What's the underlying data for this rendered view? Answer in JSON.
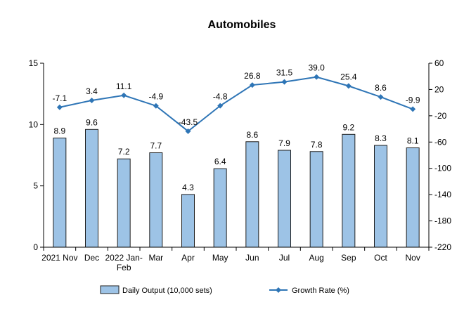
{
  "chart_data": {
    "type": "bar+line",
    "title": "Automobiles",
    "categories": [
      "2021 Nov",
      "Dec",
      "2022 Jan-Feb",
      "Mar",
      "Apr",
      "May",
      "Jun",
      "Jul",
      "Aug",
      "Sep",
      "Oct",
      "Nov"
    ],
    "category_lines": [
      [
        "2021 Nov"
      ],
      [
        "Dec"
      ],
      [
        "2022 Jan-",
        "Feb"
      ],
      [
        "Mar"
      ],
      [
        "Apr"
      ],
      [
        "May"
      ],
      [
        "Jun"
      ],
      [
        "Jul"
      ],
      [
        "Aug"
      ],
      [
        "Sep"
      ],
      [
        "Oct"
      ],
      [
        "Nov"
      ]
    ],
    "series": [
      {
        "name": "Daily Output (10,000 sets)",
        "type": "bar",
        "axis": "left",
        "values": [
          8.9,
          9.6,
          7.2,
          7.7,
          4.3,
          6.4,
          8.6,
          7.9,
          7.8,
          9.2,
          8.3,
          8.1
        ],
        "labels": [
          "8.9",
          "9.6",
          "7.2",
          "7.7",
          "4.3",
          "6.4",
          "8.6",
          "7.9",
          "7.8",
          "9.2",
          "8.3",
          "8.1"
        ]
      },
      {
        "name": "Growth Rate (%)",
        "type": "line",
        "axis": "right",
        "values": [
          -7.1,
          3.4,
          11.1,
          -4.9,
          -43.5,
          -4.8,
          26.8,
          31.5,
          39.0,
          25.4,
          8.6,
          -9.9
        ],
        "labels": [
          "-7.1",
          "3.4",
          "11.1",
          "-4.9",
          "-43.5",
          "-4.8",
          "26.8",
          "31.5",
          "39.0",
          "25.4",
          "8.6",
          "-9.9"
        ]
      }
    ],
    "y_left": {
      "range": [
        0,
        15
      ],
      "ticks": [
        0,
        5,
        10,
        15
      ]
    },
    "y_right": {
      "range": [
        -220,
        60
      ],
      "ticks": [
        60,
        20,
        -20,
        -60,
        -100,
        -140,
        -180,
        -220
      ]
    },
    "grid": false,
    "legend_position": "bottom",
    "colors": {
      "bar_fill": "#9dc3e6",
      "bar_stroke": "#1f1f1f",
      "line": "#2e75b6",
      "axis": "#000000"
    }
  }
}
